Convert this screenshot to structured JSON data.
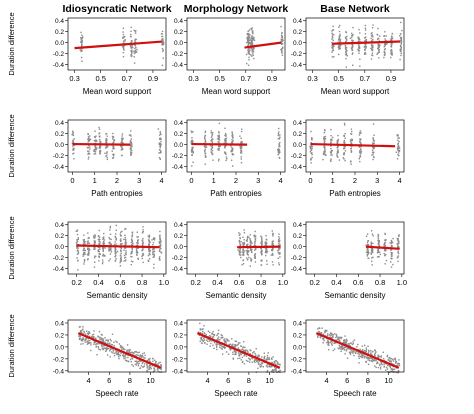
{
  "column_titles": [
    "Idiosyncratic Network",
    "Morphology Network",
    "Base Network"
  ],
  "y_axis_label": "Duration difference",
  "colors": {
    "points": "#8c8c8c",
    "fit_line": "#d01010",
    "axes": "#000000"
  },
  "chart_data": [
    {
      "type": "scatter",
      "xlabel": "Mean word support",
      "ylabel": "Duration difference",
      "xlim": [
        0.25,
        1.0
      ],
      "ylim": [
        -0.5,
        0.45
      ],
      "x_ticks": [
        "0.3",
        "0.5",
        "0.7",
        "0.9"
      ],
      "y_ticks": [
        "-0.4",
        "-0.2",
        "0.0",
        "0.2",
        "0.4"
      ],
      "panels": [
        {
          "column": "Idiosyncratic Network",
          "x_cluster_centers": [
            0.35,
            0.67,
            0.73,
            0.76,
            0.97
          ],
          "fit_line": [
            [
              0.3,
              -0.1
            ],
            [
              0.97,
              0.02
            ]
          ]
        },
        {
          "column": "Morphology Network",
          "x_cluster_centers": [
            0.71,
            0.72,
            0.74,
            0.75,
            0.97
          ],
          "fit_line": [
            [
              0.69,
              -0.09
            ],
            [
              0.97,
              0.0
            ]
          ]
        },
        {
          "column": "Base Network",
          "x_cluster_centers": [
            0.45,
            0.5,
            0.55,
            0.6,
            0.65,
            0.7,
            0.75,
            0.8,
            0.85,
            0.9,
            0.97
          ],
          "fit_line": [
            [
              0.45,
              -0.02
            ],
            [
              0.97,
              0.02
            ]
          ]
        }
      ]
    },
    {
      "type": "scatter",
      "xlabel": "Path entropies",
      "ylabel": "Duration difference",
      "xlim": [
        -0.2,
        4.2
      ],
      "ylim": [
        -0.5,
        0.45
      ],
      "x_ticks": [
        "0",
        "1",
        "2",
        "3",
        "4"
      ],
      "y_ticks": [
        "-0.4",
        "-0.2",
        "0.0",
        "0.2",
        "0.4"
      ],
      "panels": [
        {
          "column": "Idiosyncratic Network",
          "x_cluster_centers": [
            0.0,
            0.7,
            1.0,
            1.2,
            1.5,
            1.8,
            2.2,
            2.6,
            3.9
          ],
          "fit_line": [
            [
              0.0,
              0.01
            ],
            [
              2.6,
              0.0
            ]
          ]
        },
        {
          "column": "Morphology Network",
          "x_cluster_centers": [
            0.0,
            0.6,
            0.9,
            1.2,
            1.5,
            1.8,
            2.2,
            3.9
          ],
          "fit_line": [
            [
              0.0,
              0.01
            ],
            [
              2.5,
              0.0
            ]
          ]
        },
        {
          "column": "Base Network",
          "x_cluster_centers": [
            0.0,
            0.6,
            0.9,
            1.2,
            1.5,
            1.8,
            2.2,
            2.8,
            3.9
          ],
          "fit_line": [
            [
              0.0,
              0.01
            ],
            [
              3.8,
              -0.03
            ]
          ]
        }
      ]
    },
    {
      "type": "scatter",
      "xlabel": "Semantic density",
      "ylabel": "Duration difference",
      "xlim": [
        0.12,
        1.02
      ],
      "ylim": [
        -0.5,
        0.45
      ],
      "x_ticks": [
        "0.2",
        "0.4",
        "0.6",
        "0.8",
        "1.0"
      ],
      "y_ticks": [
        "-0.4",
        "-0.2",
        "0.0",
        "0.2",
        "0.4"
      ],
      "panels": [
        {
          "column": "Idiosyncratic Network",
          "x_cluster_centers": [
            0.2,
            0.26,
            0.3,
            0.36,
            0.4,
            0.44,
            0.5,
            0.55,
            0.6,
            0.64,
            0.7,
            0.75,
            0.8,
            0.86,
            0.9,
            0.96
          ],
          "fit_line": [
            [
              0.2,
              0.02
            ],
            [
              0.96,
              -0.01
            ]
          ]
        },
        {
          "column": "Morphology Network",
          "x_cluster_centers": [
            0.6,
            0.63,
            0.67,
            0.7,
            0.74,
            0.8,
            0.84,
            0.9,
            0.96
          ],
          "fit_line": [
            [
              0.58,
              -0.01
            ],
            [
              0.98,
              0.0
            ]
          ]
        },
        {
          "column": "Base Network",
          "x_cluster_centers": [
            0.68,
            0.72,
            0.78,
            0.84,
            0.9,
            0.96
          ],
          "fit_line": [
            [
              0.67,
              0.0
            ],
            [
              0.98,
              -0.04
            ]
          ]
        }
      ]
    },
    {
      "type": "scatter",
      "xlabel": "Speech rate",
      "ylabel": "Duration difference",
      "xlim": [
        2.0,
        11.5
      ],
      "ylim": [
        -0.42,
        0.45
      ],
      "x_ticks": [
        "4",
        "6",
        "8",
        "10"
      ],
      "y_ticks": [
        "-0.4",
        "-0.2",
        "0.0",
        "0.2",
        "0.4"
      ],
      "panels": [
        {
          "column": "Idiosyncratic Network",
          "fit_line": [
            [
              3.0,
              0.23
            ],
            [
              11.0,
              -0.35
            ]
          ]
        },
        {
          "column": "Morphology Network",
          "fit_line": [
            [
              3.0,
              0.23
            ],
            [
              11.0,
              -0.35
            ]
          ]
        },
        {
          "column": "Base Network",
          "fit_line": [
            [
              3.0,
              0.23
            ],
            [
              11.0,
              -0.35
            ]
          ]
        }
      ]
    }
  ]
}
